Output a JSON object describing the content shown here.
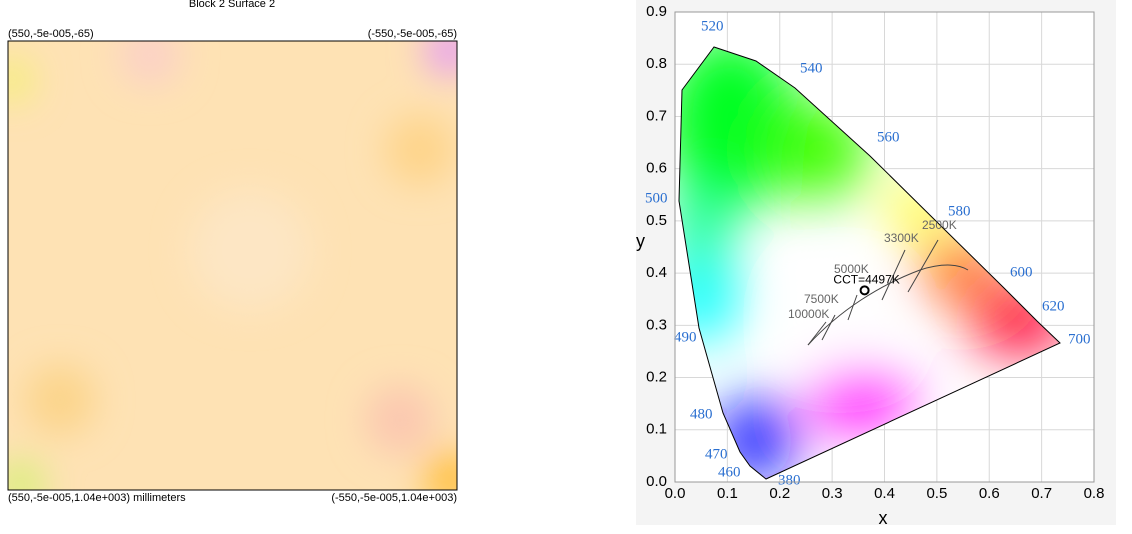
{
  "left_panel": {
    "title": "Block 2 Surface 2",
    "top_left": "(550,-5e-005,-65)",
    "top_right": "(-550,-5e-005,-65)",
    "bottom_left": "(550,-5e-005,1.04e+003) millimeters",
    "bottom_right": "(-550,-5e-005,1.04e+003)"
  },
  "right_chart": {
    "type": "scatter",
    "xlabel": "x",
    "ylabel": "y",
    "xlim": [
      0,
      0.8
    ],
    "ylim": [
      0,
      0.9
    ],
    "xticks": [
      {
        "value": 0,
        "label": "0.0"
      },
      0.1,
      0.2,
      0.3,
      0.4,
      0.5,
      0.6,
      0.7,
      0.8
    ],
    "yticks": [
      {
        "value": 0,
        "label": "0.0"
      },
      0.1,
      0.2,
      0.3,
      0.4,
      0.5,
      0.6,
      0.7,
      0.8,
      0.9
    ],
    "grid": true,
    "wavelengths": [
      "520",
      "540",
      "560",
      "580",
      "600",
      "620",
      "700",
      "500",
      "490",
      "480",
      "470",
      "460",
      "380"
    ],
    "isotherms": [
      "10000K",
      "7500K",
      "5000K",
      "3300K",
      "2500K"
    ],
    "point": {
      "label": "CCT=4497K",
      "x": 0.362,
      "y": 0.367
    }
  }
}
